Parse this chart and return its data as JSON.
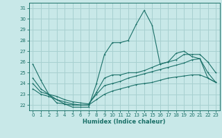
{
  "xlabel": "Humidex (Indice chaleur)",
  "bg_color": "#c8e8e8",
  "grid_color": "#a8d0d0",
  "line_color": "#1a7068",
  "series": [
    [
      25.8,
      24.3,
      23.0,
      22.2,
      22.1,
      21.8,
      21.8,
      21.8,
      24.0,
      26.7,
      27.8,
      27.8,
      28.0,
      29.5,
      30.8,
      29.4,
      25.8,
      26.0,
      26.8,
      27.0,
      26.5,
      26.3,
      25.0,
      24.1
    ],
    [
      24.5,
      23.5,
      23.0,
      22.5,
      22.1,
      22.0,
      22.0,
      22.0,
      23.2,
      24.5,
      24.8,
      24.8,
      25.0,
      25.0,
      25.2,
      25.5,
      25.8,
      26.0,
      26.2,
      26.7,
      26.7,
      26.7,
      26.0,
      25.0
    ],
    [
      24.0,
      23.2,
      23.0,
      22.8,
      22.5,
      22.3,
      22.2,
      22.1,
      23.0,
      23.8,
      24.0,
      24.2,
      24.5,
      24.7,
      24.9,
      25.1,
      25.3,
      25.5,
      25.7,
      25.9,
      26.2,
      26.3,
      24.5,
      24.1
    ],
    [
      23.5,
      23.0,
      22.8,
      22.5,
      22.3,
      22.1,
      22.0,
      22.0,
      22.5,
      23.0,
      23.3,
      23.5,
      23.7,
      23.9,
      24.0,
      24.1,
      24.3,
      24.5,
      24.6,
      24.7,
      24.8,
      24.8,
      24.5,
      24.1
    ]
  ],
  "ylim": [
    21.5,
    31.5
  ],
  "yticks": [
    22,
    23,
    24,
    25,
    26,
    27,
    28,
    29,
    30,
    31
  ],
  "xticks": [
    0,
    1,
    2,
    3,
    4,
    5,
    6,
    7,
    8,
    9,
    10,
    11,
    12,
    13,
    14,
    15,
    16,
    17,
    18,
    19,
    20,
    21,
    22,
    23
  ],
  "xlabel_fontsize": 6.0,
  "tick_fontsize": 5.0
}
